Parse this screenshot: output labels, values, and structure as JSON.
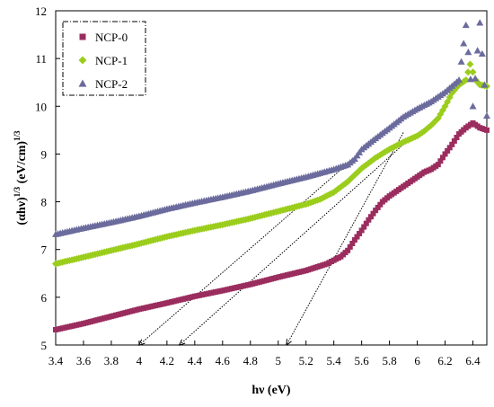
{
  "chart_data": {
    "type": "scatter",
    "title": "",
    "xlabel": "hν (eV)",
    "ylabel_main": "(αhν)",
    "ylabel_sup1": "1/3",
    "ylabel_units": " (eV/cm)",
    "ylabel_sup2": "1/3",
    "xlim": [
      3.4,
      6.5
    ],
    "ylim": [
      5,
      12
    ],
    "x_ticks": [
      "3.4",
      "3.6",
      "3.8",
      "4",
      "4.2",
      "4.4",
      "4.6",
      "4.8",
      "5",
      "5.2",
      "5.4",
      "5.6",
      "5.8",
      "6",
      "6.2",
      "6.4"
    ],
    "y_ticks": [
      "5",
      "6",
      "7",
      "8",
      "9",
      "10",
      "11",
      "12"
    ],
    "grid": false,
    "legend_position": "top-left",
    "series": [
      {
        "name": "NCP-0",
        "color": "#9b2d5e",
        "marker": "square",
        "points": [
          [
            3.4,
            5.32
          ],
          [
            3.6,
            5.45
          ],
          [
            3.8,
            5.6
          ],
          [
            4.0,
            5.75
          ],
          [
            4.2,
            5.88
          ],
          [
            4.4,
            6.02
          ],
          [
            4.6,
            6.14
          ],
          [
            4.8,
            6.27
          ],
          [
            5.0,
            6.42
          ],
          [
            5.2,
            6.56
          ],
          [
            5.35,
            6.7
          ],
          [
            5.45,
            6.85
          ],
          [
            5.5,
            6.98
          ],
          [
            5.55,
            7.2
          ],
          [
            5.6,
            7.4
          ],
          [
            5.65,
            7.62
          ],
          [
            5.7,
            7.82
          ],
          [
            5.75,
            8.0
          ],
          [
            5.8,
            8.12
          ],
          [
            5.85,
            8.22
          ],
          [
            5.9,
            8.32
          ],
          [
            5.95,
            8.42
          ],
          [
            6.0,
            8.52
          ],
          [
            6.05,
            8.62
          ],
          [
            6.1,
            8.68
          ],
          [
            6.15,
            8.78
          ],
          [
            6.2,
            9.0
          ],
          [
            6.25,
            9.2
          ],
          [
            6.3,
            9.42
          ],
          [
            6.35,
            9.55
          ],
          [
            6.4,
            9.65
          ],
          [
            6.45,
            9.55
          ],
          [
            6.5,
            9.5
          ]
        ]
      },
      {
        "name": "NCP-1",
        "color": "#9bcd1c",
        "marker": "diamond",
        "points": [
          [
            3.4,
            6.7
          ],
          [
            3.6,
            6.84
          ],
          [
            3.8,
            6.98
          ],
          [
            4.0,
            7.12
          ],
          [
            4.2,
            7.27
          ],
          [
            4.4,
            7.4
          ],
          [
            4.6,
            7.52
          ],
          [
            4.8,
            7.65
          ],
          [
            5.0,
            7.8
          ],
          [
            5.2,
            7.95
          ],
          [
            5.3,
            8.05
          ],
          [
            5.4,
            8.2
          ],
          [
            5.5,
            8.42
          ],
          [
            5.6,
            8.7
          ],
          [
            5.7,
            8.92
          ],
          [
            5.8,
            9.1
          ],
          [
            5.9,
            9.25
          ],
          [
            6.0,
            9.38
          ],
          [
            6.05,
            9.48
          ],
          [
            6.1,
            9.6
          ],
          [
            6.15,
            9.75
          ],
          [
            6.2,
            10.0
          ],
          [
            6.25,
            10.28
          ],
          [
            6.3,
            10.45
          ],
          [
            6.35,
            10.55
          ],
          [
            6.38,
            10.88
          ],
          [
            6.42,
            10.55
          ],
          [
            6.45,
            10.45
          ],
          [
            6.5,
            10.42
          ]
        ]
      },
      {
        "name": "NCP-2",
        "color": "#6b6b9d",
        "marker": "triangle",
        "points": [
          [
            3.4,
            7.32
          ],
          [
            3.6,
            7.45
          ],
          [
            3.8,
            7.57
          ],
          [
            4.0,
            7.7
          ],
          [
            4.2,
            7.85
          ],
          [
            4.4,
            7.98
          ],
          [
            4.6,
            8.1
          ],
          [
            4.8,
            8.23
          ],
          [
            5.0,
            8.38
          ],
          [
            5.2,
            8.52
          ],
          [
            5.4,
            8.68
          ],
          [
            5.5,
            8.78
          ],
          [
            5.55,
            8.9
          ],
          [
            5.6,
            9.1
          ],
          [
            5.7,
            9.33
          ],
          [
            5.8,
            9.55
          ],
          [
            5.9,
            9.78
          ],
          [
            6.0,
            9.95
          ],
          [
            6.1,
            10.1
          ],
          [
            6.2,
            10.3
          ],
          [
            6.3,
            10.55
          ],
          [
            6.35,
            11.7
          ],
          [
            6.4,
            10.0
          ],
          [
            6.45,
            11.75
          ],
          [
            6.5,
            9.8
          ]
        ]
      }
    ],
    "tangent_lines": [
      {
        "name": "NCP-0",
        "from": [
          5.9,
          9.45
        ],
        "to": [
          5.06,
          5.0
        ]
      },
      {
        "name": "NCP-1",
        "from": [
          5.9,
          9.2
        ],
        "to": [
          4.29,
          5.0
        ]
      },
      {
        "name": "NCP-2",
        "from": [
          5.6,
          9.05
        ],
        "to": [
          4.0,
          5.0
        ]
      }
    ]
  }
}
